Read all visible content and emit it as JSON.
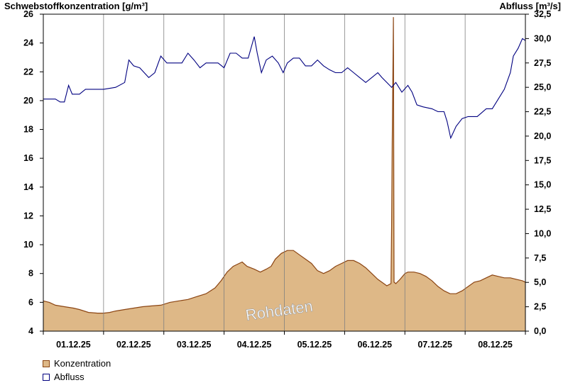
{
  "chart_data": {
    "type": "area",
    "left_axis_title": "Schwebstoffkonzentration [g/m³]",
    "right_axis_title": "Abfluss [m³/s]",
    "x_labels": [
      "01.12.25",
      "02.12.25",
      "03.12.25",
      "04.12.25",
      "05.12.25",
      "06.12.25",
      "07.12.25",
      "08.12.25"
    ],
    "x_range_days": [
      0,
      8
    ],
    "y_left": {
      "min": 4,
      "max": 26,
      "ticks": [
        4,
        6,
        8,
        10,
        12,
        14,
        16,
        18,
        20,
        22,
        24,
        26
      ]
    },
    "y_right": {
      "min": 0,
      "max": 32.5,
      "ticks": [
        "0,0",
        "2,5",
        "5,0",
        "7,5",
        "10,0",
        "12,5",
        "15,0",
        "17,5",
        "20,0",
        "22,5",
        "25,0",
        "27,5",
        "30,0",
        "32,5"
      ]
    },
    "watermark": "Rohdaten",
    "series": [
      {
        "name": "Konzentration",
        "axis": "left",
        "color": "#deb887",
        "line_color": "#8b4513",
        "points": [
          [
            0,
            6.1
          ],
          [
            0.1,
            6.0
          ],
          [
            0.2,
            5.8
          ],
          [
            0.35,
            5.7
          ],
          [
            0.5,
            5.6
          ],
          [
            0.6,
            5.5
          ],
          [
            0.75,
            5.3
          ],
          [
            0.9,
            5.25
          ],
          [
            1.0,
            5.25
          ],
          [
            1.1,
            5.3
          ],
          [
            1.2,
            5.4
          ],
          [
            1.35,
            5.5
          ],
          [
            1.5,
            5.6
          ],
          [
            1.65,
            5.7
          ],
          [
            1.8,
            5.75
          ],
          [
            1.95,
            5.8
          ],
          [
            2.1,
            6.0
          ],
          [
            2.25,
            6.1
          ],
          [
            2.4,
            6.2
          ],
          [
            2.55,
            6.4
          ],
          [
            2.7,
            6.6
          ],
          [
            2.85,
            7.0
          ],
          [
            2.95,
            7.5
          ],
          [
            3.05,
            8.1
          ],
          [
            3.15,
            8.5
          ],
          [
            3.25,
            8.7
          ],
          [
            3.3,
            8.8
          ],
          [
            3.38,
            8.5
          ],
          [
            3.5,
            8.3
          ],
          [
            3.6,
            8.1
          ],
          [
            3.7,
            8.3
          ],
          [
            3.78,
            8.5
          ],
          [
            3.85,
            9.0
          ],
          [
            3.95,
            9.4
          ],
          [
            4.05,
            9.6
          ],
          [
            4.15,
            9.6
          ],
          [
            4.25,
            9.3
          ],
          [
            4.35,
            9.0
          ],
          [
            4.45,
            8.7
          ],
          [
            4.55,
            8.2
          ],
          [
            4.65,
            8.0
          ],
          [
            4.75,
            8.2
          ],
          [
            4.85,
            8.5
          ],
          [
            4.95,
            8.7
          ],
          [
            5.05,
            8.9
          ],
          [
            5.15,
            8.9
          ],
          [
            5.25,
            8.7
          ],
          [
            5.35,
            8.4
          ],
          [
            5.45,
            8.0
          ],
          [
            5.55,
            7.6
          ],
          [
            5.65,
            7.3
          ],
          [
            5.7,
            7.15
          ],
          [
            5.77,
            7.3
          ],
          [
            5.78,
            11.5
          ],
          [
            5.79,
            17.0
          ],
          [
            5.8,
            21.5
          ],
          [
            5.81,
            25.8
          ],
          [
            5.82,
            7.4
          ],
          [
            5.85,
            7.3
          ],
          [
            5.92,
            7.6
          ],
          [
            6.0,
            8.0
          ],
          [
            6.05,
            8.1
          ],
          [
            6.15,
            8.1
          ],
          [
            6.25,
            8.0
          ],
          [
            6.35,
            7.8
          ],
          [
            6.45,
            7.5
          ],
          [
            6.55,
            7.1
          ],
          [
            6.65,
            6.8
          ],
          [
            6.75,
            6.6
          ],
          [
            6.85,
            6.6
          ],
          [
            6.95,
            6.8
          ],
          [
            7.05,
            7.1
          ],
          [
            7.15,
            7.4
          ],
          [
            7.25,
            7.5
          ],
          [
            7.35,
            7.7
          ],
          [
            7.45,
            7.9
          ],
          [
            7.55,
            7.8
          ],
          [
            7.65,
            7.7
          ],
          [
            7.75,
            7.7
          ],
          [
            7.85,
            7.6
          ],
          [
            7.95,
            7.5
          ],
          [
            8.0,
            7.4
          ]
        ]
      },
      {
        "name": "Abfluss",
        "axis": "right",
        "color": "#000080",
        "points": [
          [
            0,
            23.8
          ],
          [
            0.1,
            23.8
          ],
          [
            0.2,
            23.8
          ],
          [
            0.28,
            23.5
          ],
          [
            0.35,
            23.5
          ],
          [
            0.42,
            25.2
          ],
          [
            0.48,
            24.3
          ],
          [
            0.6,
            24.3
          ],
          [
            0.7,
            24.8
          ],
          [
            0.85,
            24.8
          ],
          [
            1.0,
            24.8
          ],
          [
            1.2,
            25.0
          ],
          [
            1.35,
            25.5
          ],
          [
            1.42,
            27.8
          ],
          [
            1.5,
            27.2
          ],
          [
            1.6,
            27.0
          ],
          [
            1.75,
            26.0
          ],
          [
            1.85,
            26.5
          ],
          [
            1.95,
            28.2
          ],
          [
            2.05,
            27.5
          ],
          [
            2.2,
            27.5
          ],
          [
            2.3,
            27.5
          ],
          [
            2.4,
            28.5
          ],
          [
            2.5,
            27.8
          ],
          [
            2.6,
            27.0
          ],
          [
            2.7,
            27.5
          ],
          [
            2.8,
            27.5
          ],
          [
            2.9,
            27.5
          ],
          [
            3.0,
            27.0
          ],
          [
            3.1,
            28.5
          ],
          [
            3.2,
            28.5
          ],
          [
            3.3,
            28.0
          ],
          [
            3.4,
            28.0
          ],
          [
            3.5,
            30.2
          ],
          [
            3.55,
            28.5
          ],
          [
            3.62,
            26.5
          ],
          [
            3.7,
            27.8
          ],
          [
            3.8,
            28.2
          ],
          [
            3.9,
            27.5
          ],
          [
            3.98,
            26.5
          ],
          [
            4.05,
            27.5
          ],
          [
            4.15,
            28.0
          ],
          [
            4.25,
            28.0
          ],
          [
            4.35,
            27.2
          ],
          [
            4.45,
            27.2
          ],
          [
            4.55,
            27.8
          ],
          [
            4.65,
            27.2
          ],
          [
            4.75,
            26.8
          ],
          [
            4.85,
            26.5
          ],
          [
            4.95,
            26.5
          ],
          [
            5.05,
            27.0
          ],
          [
            5.15,
            26.5
          ],
          [
            5.25,
            26.0
          ],
          [
            5.35,
            25.5
          ],
          [
            5.45,
            26.0
          ],
          [
            5.55,
            26.5
          ],
          [
            5.62,
            26.0
          ],
          [
            5.7,
            25.5
          ],
          [
            5.78,
            25.0
          ],
          [
            5.85,
            25.5
          ],
          [
            5.95,
            24.5
          ],
          [
            6.05,
            25.2
          ],
          [
            6.12,
            24.5
          ],
          [
            6.2,
            23.2
          ],
          [
            6.3,
            23.0
          ],
          [
            6.45,
            22.8
          ],
          [
            6.55,
            22.5
          ],
          [
            6.65,
            22.5
          ],
          [
            6.7,
            21.5
          ],
          [
            6.76,
            19.8
          ],
          [
            6.85,
            21.0
          ],
          [
            6.95,
            21.8
          ],
          [
            7.05,
            22.0
          ],
          [
            7.2,
            22.0
          ],
          [
            7.35,
            22.8
          ],
          [
            7.45,
            22.8
          ],
          [
            7.55,
            23.8
          ],
          [
            7.65,
            24.8
          ],
          [
            7.75,
            26.5
          ],
          [
            7.8,
            28.2
          ],
          [
            7.88,
            29.0
          ],
          [
            7.95,
            30.0
          ],
          [
            8.0,
            29.8
          ]
        ]
      }
    ]
  }
}
